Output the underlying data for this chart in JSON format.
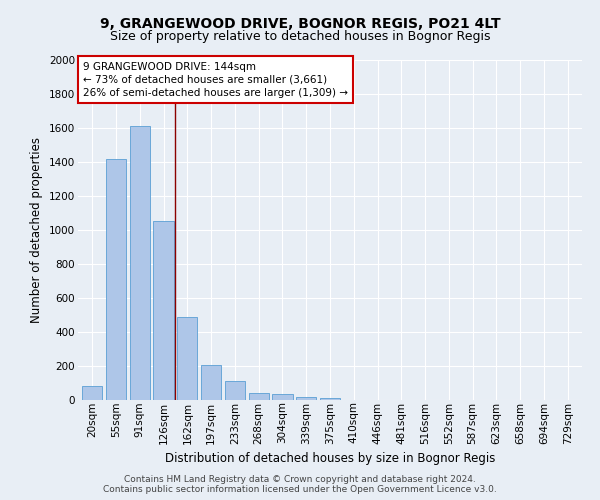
{
  "title": "9, GRANGEWOOD DRIVE, BOGNOR REGIS, PO21 4LT",
  "subtitle": "Size of property relative to detached houses in Bognor Regis",
  "xlabel": "Distribution of detached houses by size in Bognor Regis",
  "ylabel": "Number of detached properties",
  "categories": [
    "20sqm",
    "55sqm",
    "91sqm",
    "126sqm",
    "162sqm",
    "197sqm",
    "233sqm",
    "268sqm",
    "304sqm",
    "339sqm",
    "375sqm",
    "410sqm",
    "446sqm",
    "481sqm",
    "516sqm",
    "552sqm",
    "587sqm",
    "623sqm",
    "658sqm",
    "694sqm",
    "729sqm"
  ],
  "values": [
    80,
    1420,
    1610,
    1050,
    490,
    205,
    110,
    40,
    35,
    20,
    10,
    0,
    0,
    0,
    0,
    0,
    0,
    0,
    0,
    0,
    0
  ],
  "bar_color": "#aec6e8",
  "bar_edge_color": "#5a9fd4",
  "vline_idx": 3.5,
  "vline_color": "#8b0000",
  "annotation_text": "9 GRANGEWOOD DRIVE: 144sqm\n← 73% of detached houses are smaller (3,661)\n26% of semi-detached houses are larger (1,309) →",
  "annotation_box_color": "#ffffff",
  "annotation_box_edgecolor": "#cc0000",
  "ylim": [
    0,
    2000
  ],
  "yticks": [
    0,
    200,
    400,
    600,
    800,
    1000,
    1200,
    1400,
    1600,
    1800,
    2000
  ],
  "background_color": "#e8eef5",
  "plot_background": "#e8eef5",
  "footer_line1": "Contains HM Land Registry data © Crown copyright and database right 2024.",
  "footer_line2": "Contains public sector information licensed under the Open Government Licence v3.0.",
  "title_fontsize": 10,
  "subtitle_fontsize": 9,
  "xlabel_fontsize": 8.5,
  "ylabel_fontsize": 8.5,
  "tick_fontsize": 7.5,
  "annotation_fontsize": 7.5,
  "footer_fontsize": 6.5
}
